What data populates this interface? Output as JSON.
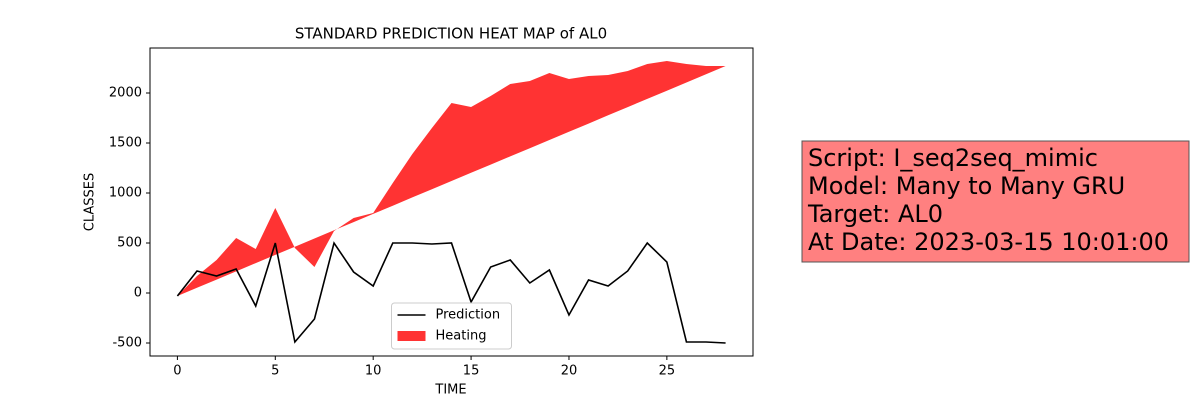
{
  "chart_data": {
    "type": "line_fill",
    "title": "STANDARD PREDICTION HEAT MAP of AL0",
    "x_label": "TIME",
    "y_label": "CLASSES",
    "x": [
      0,
      1,
      2,
      3,
      4,
      5,
      6,
      7,
      8,
      9,
      10,
      11,
      12,
      13,
      14,
      15,
      16,
      17,
      18,
      19,
      20,
      21,
      22,
      23,
      24,
      25,
      26,
      27,
      28
    ],
    "series": [
      {
        "name": "Prediction",
        "color": "#000000",
        "kind": "line",
        "values": [
          -30,
          220,
          170,
          240,
          -130,
          500,
          -490,
          -260,
          500,
          210,
          70,
          500,
          500,
          490,
          500,
          -90,
          260,
          330,
          100,
          230,
          -220,
          130,
          70,
          220,
          500,
          310,
          -490,
          -490,
          -500
        ]
      },
      {
        "name": "Heating",
        "color": "#ff3333",
        "kind": "fill",
        "values": [
          -30,
          170,
          330,
          550,
          440,
          850,
          450,
          260,
          620,
          750,
          800,
          1100,
          1390,
          1650,
          1900,
          1860,
          1970,
          2090,
          2120,
          2200,
          2140,
          2170,
          2180,
          2220,
          2290,
          2320,
          2290,
          2270,
          2270
        ],
        "base": [
          -30,
          52,
          134,
          216,
          299,
          381,
          463,
          545,
          627,
          709,
          791,
          873,
          956,
          1038,
          1120,
          1202,
          1284,
          1366,
          1448,
          1530,
          1612,
          1694,
          1777,
          1859,
          1941,
          2023,
          2105,
          2187,
          2270
        ]
      }
    ],
    "xlim": [
      -1.4,
      29.4
    ],
    "ylim": [
      -630,
      2450
    ],
    "xticks": [
      0,
      5,
      10,
      15,
      20,
      25
    ],
    "yticks": [
      -500,
      0,
      500,
      1000,
      1500,
      2000
    ],
    "legend": "lower center",
    "annotations": [
      "Script: I_seq2seq_mimic",
      "Model: Many to Many GRU",
      "Target: AL0",
      "At Date: 2023-03-15 10:01:00"
    ]
  }
}
